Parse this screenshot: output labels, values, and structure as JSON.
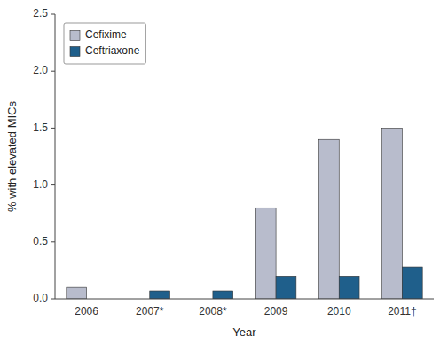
{
  "chart_data": {
    "type": "bar",
    "categories": [
      "2006",
      "2007*",
      "2008*",
      "2009",
      "2010",
      "2011†"
    ],
    "series": [
      {
        "name": "Cefixime",
        "color": "#b8bccc",
        "values": [
          0.1,
          0.0,
          0.0,
          0.8,
          1.4,
          1.5
        ]
      },
      {
        "name": "Ceftriaxone",
        "color": "#1f5f8b",
        "values": [
          0.0,
          0.07,
          0.07,
          0.2,
          0.2,
          0.28
        ]
      }
    ],
    "xlabel": "Year",
    "ylabel": "% with elevated MICs",
    "ylim": [
      0,
      2.5
    ],
    "yticks": [
      {
        "value": 0,
        "label": "0.0"
      },
      0.5,
      {
        "value": 1,
        "label": "1.0"
      },
      1.5,
      {
        "value": 2,
        "label": "2.0"
      },
      2.5
    ],
    "grid": false,
    "legend": "upper left"
  }
}
